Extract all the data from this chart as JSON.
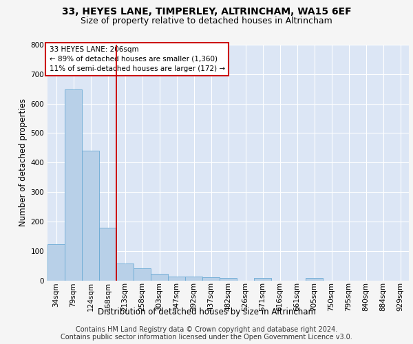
{
  "title": "33, HEYES LANE, TIMPERLEY, ALTRINCHAM, WA15 6EF",
  "subtitle": "Size of property relative to detached houses in Altrincham",
  "xlabel": "Distribution of detached houses by size in Altrincham",
  "ylabel": "Number of detached properties",
  "footer_line1": "Contains HM Land Registry data © Crown copyright and database right 2024.",
  "footer_line2": "Contains public sector information licensed under the Open Government Licence v3.0.",
  "categories": [
    "34sqm",
    "79sqm",
    "124sqm",
    "168sqm",
    "213sqm",
    "258sqm",
    "303sqm",
    "347sqm",
    "392sqm",
    "437sqm",
    "482sqm",
    "526sqm",
    "571sqm",
    "616sqm",
    "661sqm",
    "705sqm",
    "750sqm",
    "795sqm",
    "840sqm",
    "884sqm",
    "929sqm"
  ],
  "bar_heights": [
    123,
    648,
    441,
    179,
    57,
    40,
    23,
    13,
    13,
    11,
    8,
    0,
    8,
    0,
    0,
    8,
    0,
    0,
    0,
    0,
    0
  ],
  "bar_color": "#b8d0e8",
  "bar_edge_color": "#6aaad4",
  "vline_color": "#cc0000",
  "annotation_text": "33 HEYES LANE: 206sqm\n← 89% of detached houses are smaller (1,360)\n11% of semi-detached houses are larger (172) →",
  "annotation_box_color": "#ffffff",
  "annotation_box_edge": "#cc0000",
  "ylim": [
    0,
    800
  ],
  "yticks": [
    0,
    100,
    200,
    300,
    400,
    500,
    600,
    700,
    800
  ],
  "fig_bg_color": "#f5f5f5",
  "plot_bg_color": "#dce6f5",
  "grid_color": "#ffffff",
  "title_fontsize": 10,
  "subtitle_fontsize": 9,
  "axis_label_fontsize": 8.5,
  "tick_fontsize": 7.5,
  "footer_fontsize": 7,
  "annot_fontsize": 7.5
}
